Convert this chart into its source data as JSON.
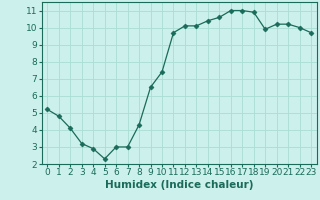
{
  "x": [
    0,
    1,
    2,
    3,
    4,
    5,
    6,
    7,
    8,
    9,
    10,
    11,
    12,
    13,
    14,
    15,
    16,
    17,
    18,
    19,
    20,
    21,
    22,
    23
  ],
  "y": [
    5.2,
    4.8,
    4.1,
    3.2,
    2.9,
    2.3,
    3.0,
    3.0,
    4.3,
    6.5,
    7.4,
    9.7,
    10.1,
    10.1,
    10.4,
    10.6,
    11.0,
    11.0,
    10.9,
    9.9,
    10.2,
    10.2,
    10.0,
    9.7
  ],
  "xlim": [
    -0.5,
    23.5
  ],
  "ylim": [
    2,
    11.5
  ],
  "yticks": [
    2,
    3,
    4,
    5,
    6,
    7,
    8,
    9,
    10,
    11
  ],
  "xticks": [
    0,
    1,
    2,
    3,
    4,
    5,
    6,
    7,
    8,
    9,
    10,
    11,
    12,
    13,
    14,
    15,
    16,
    17,
    18,
    19,
    20,
    21,
    22,
    23
  ],
  "xlabel": "Humidex (Indice chaleur)",
  "line_color": "#1a6b5a",
  "marker": "D",
  "marker_size": 2.5,
  "bg_color": "#ccf0eb",
  "grid_color": "#aaddd5",
  "title": "",
  "tick_fontsize": 6.5,
  "label_fontsize": 7.5
}
